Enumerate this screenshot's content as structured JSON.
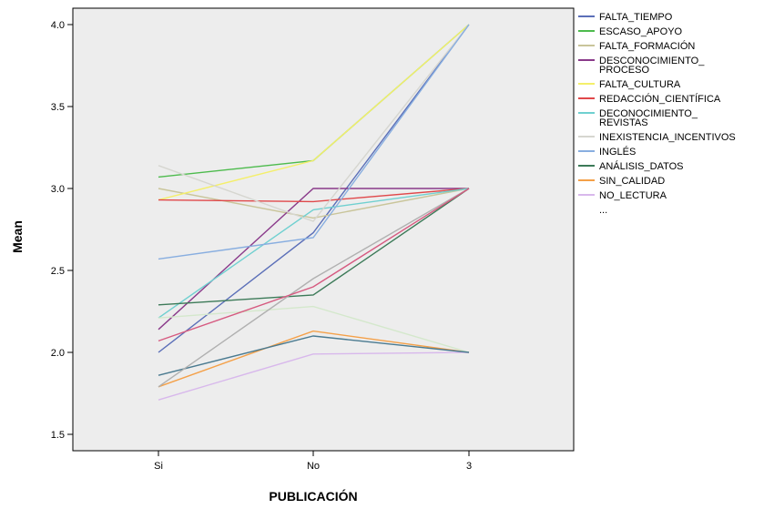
{
  "chart_data": {
    "type": "line",
    "xlabel": "PUBLICACIÓN",
    "ylabel": "Mean",
    "categories": [
      "Si",
      "No",
      "3"
    ],
    "ylim": [
      1.4,
      4.1
    ],
    "yticks": [
      1.5,
      2.0,
      2.5,
      3.0,
      3.5,
      4.0
    ],
    "ytick_labels": [
      "1.5",
      "2.0",
      "2.5",
      "3.0",
      "3.5",
      "4.0"
    ],
    "background": "#ededed",
    "series": [
      {
        "name": "FALTA_TIEMPO",
        "color": "#5b6fb8",
        "values": [
          2.0,
          2.73,
          4.0
        ]
      },
      {
        "name": "ESCASO_APOYO",
        "color": "#4dbb4d",
        "values": [
          3.07,
          3.17,
          4.0
        ]
      },
      {
        "name": "FALTA_FORMACIÓN",
        "color": "#c9c59a",
        "values": [
          3.0,
          2.82,
          3.0
        ]
      },
      {
        "name": "DESCONOCIMIENTO_ PROCESO",
        "color": "#8a3a8a",
        "values": [
          2.14,
          3.0,
          3.0
        ]
      },
      {
        "name": "FALTA_CULTURA",
        "color": "#f4ef6a",
        "values": [
          2.93,
          3.17,
          4.0
        ]
      },
      {
        "name": "REDACCIÓN_CIENTÍFICA",
        "color": "#e0484a",
        "values": [
          2.93,
          2.92,
          3.0
        ]
      },
      {
        "name": "DECONOCIMIENTO_ REVISTAS",
        "color": "#6fd0d0",
        "values": [
          2.21,
          2.87,
          3.0
        ]
      },
      {
        "name": "INEXISTENCIA_INCENTIVOS",
        "color": "#d6d6d0",
        "values": [
          3.14,
          2.8,
          4.0
        ]
      },
      {
        "name": "INGLÉS",
        "color": "#88aee0",
        "values": [
          2.57,
          2.7,
          4.0
        ]
      },
      {
        "name": "ANÁLISIS_DATOS",
        "color": "#3c7a58",
        "values": [
          2.29,
          2.35,
          3.0
        ]
      },
      {
        "name": "SIN_CALIDAD",
        "color": "#f4a048",
        "values": [
          1.79,
          2.13,
          2.0
        ]
      },
      {
        "name": "NO_LECTURA",
        "color": "#d8b8ec",
        "values": [
          1.71,
          1.99,
          2.0
        ]
      },
      {
        "color": "#d4e8cc",
        "values": [
          2.21,
          2.28,
          2.0
        ]
      },
      {
        "color": "#4a7a90",
        "values": [
          1.86,
          2.1,
          2.0
        ]
      },
      {
        "color": "#b0b0b0",
        "values": [
          1.79,
          2.45,
          3.0
        ]
      },
      {
        "color": "#d65a80",
        "values": [
          2.07,
          2.4,
          3.0
        ]
      }
    ],
    "legend": {
      "placement": "right",
      "entries": [
        {
          "text": "FALTA_TIEMPO",
          "color": "#5b6fb8"
        },
        {
          "text": "ESCASO_APOYO",
          "color": "#4dbb4d"
        },
        {
          "text": "FALTA_FORMACIÓN",
          "color": "#c9c59a"
        },
        {
          "text": "DESCONOCIMIENTO_\nPROCESO",
          "color": "#8a3a8a"
        },
        {
          "text": "FALTA_CULTURA",
          "color": "#f4ef6a"
        },
        {
          "text": "REDACCIÓN_CIENTÍFICA",
          "color": "#e0484a"
        },
        {
          "text": "DECONOCIMIENTO_\nREVISTAS",
          "color": "#6fd0d0"
        },
        {
          "text": "INEXISTENCIA_INCENTIVOS",
          "color": "#d6d6d0"
        },
        {
          "text": "INGLÉS",
          "color": "#88aee0"
        },
        {
          "text": "ANÁLISIS_DATOS",
          "color": "#3c7a58"
        },
        {
          "text": "SIN_CALIDAD",
          "color": "#f4a048"
        },
        {
          "text": "NO_LECTURA",
          "color": "#d8b8ec"
        }
      ],
      "more": "..."
    }
  }
}
